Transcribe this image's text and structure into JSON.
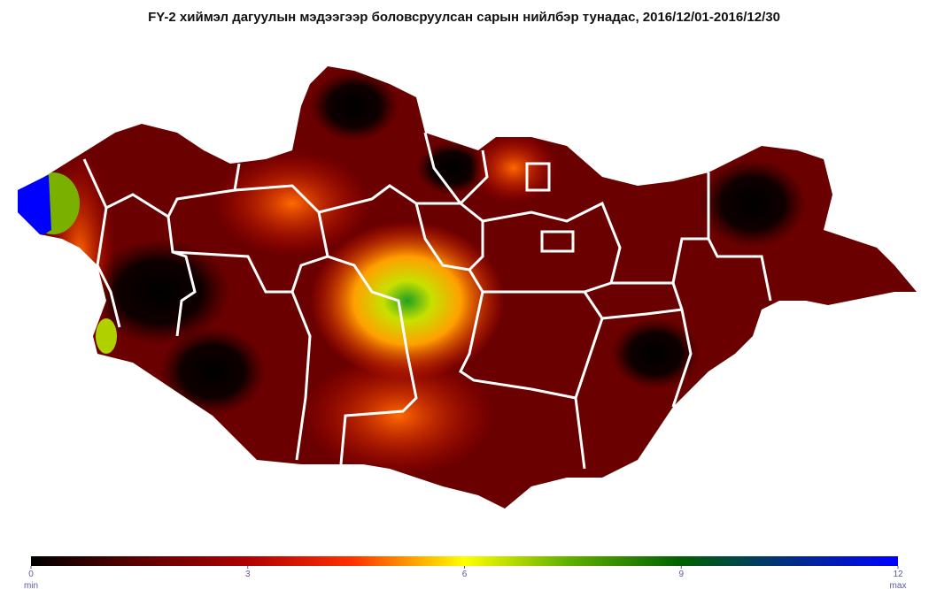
{
  "title": "FY-2 хиймэл дагуулын мэдээгээр боловсруулсан сарын нийлбэр тунадас, 2016/12/01-2016/12/30",
  "colorbar": {
    "range": [
      0,
      12
    ],
    "ticks": [
      0,
      3,
      6,
      9,
      12
    ],
    "min_label": "min",
    "max_label": "max"
  }
}
